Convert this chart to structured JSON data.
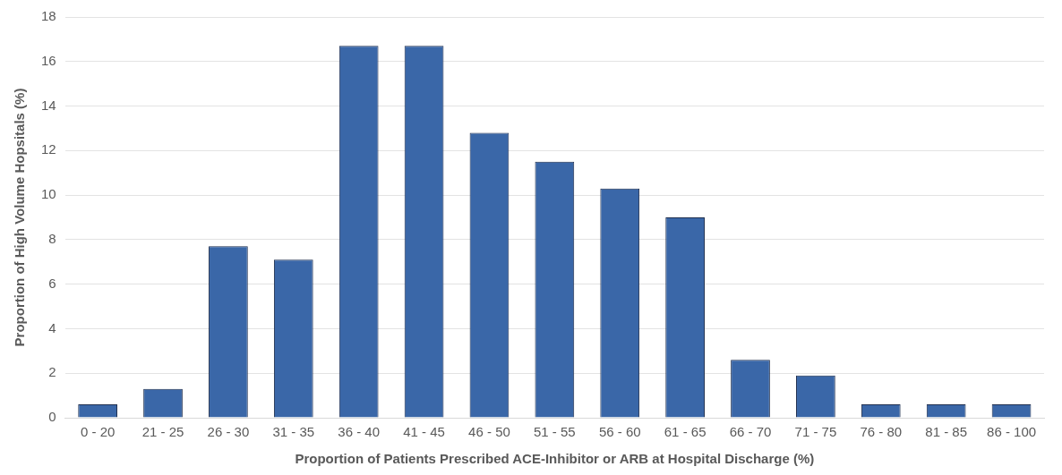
{
  "chart_data": {
    "type": "bar",
    "xlabel": "Proportion of Patients Prescribed ACE-Inhibitor or ARB at Hospital Discharge (%)",
    "ylabel": "Proportion of High Volume Hopsitals (%)",
    "categories": [
      "0 - 20",
      "21 - 25",
      "26 - 30",
      "31 - 35",
      "36 - 40",
      "41 - 45",
      "46 - 50",
      "51 - 55",
      "56 - 60",
      "61 - 65",
      "66 - 70",
      "71 - 75",
      "76 - 80",
      "81 - 85",
      "86 - 100"
    ],
    "values": [
      0.6,
      1.3,
      7.7,
      7.1,
      16.7,
      16.7,
      12.8,
      11.5,
      10.3,
      9.0,
      2.6,
      1.9,
      0.6,
      0.6,
      0.6
    ],
    "color": "#3a67a8",
    "ylim": [
      0,
      18
    ],
    "yticks": [
      0,
      2,
      4,
      6,
      8,
      10,
      12,
      14,
      16,
      18
    ],
    "grid": "y"
  }
}
